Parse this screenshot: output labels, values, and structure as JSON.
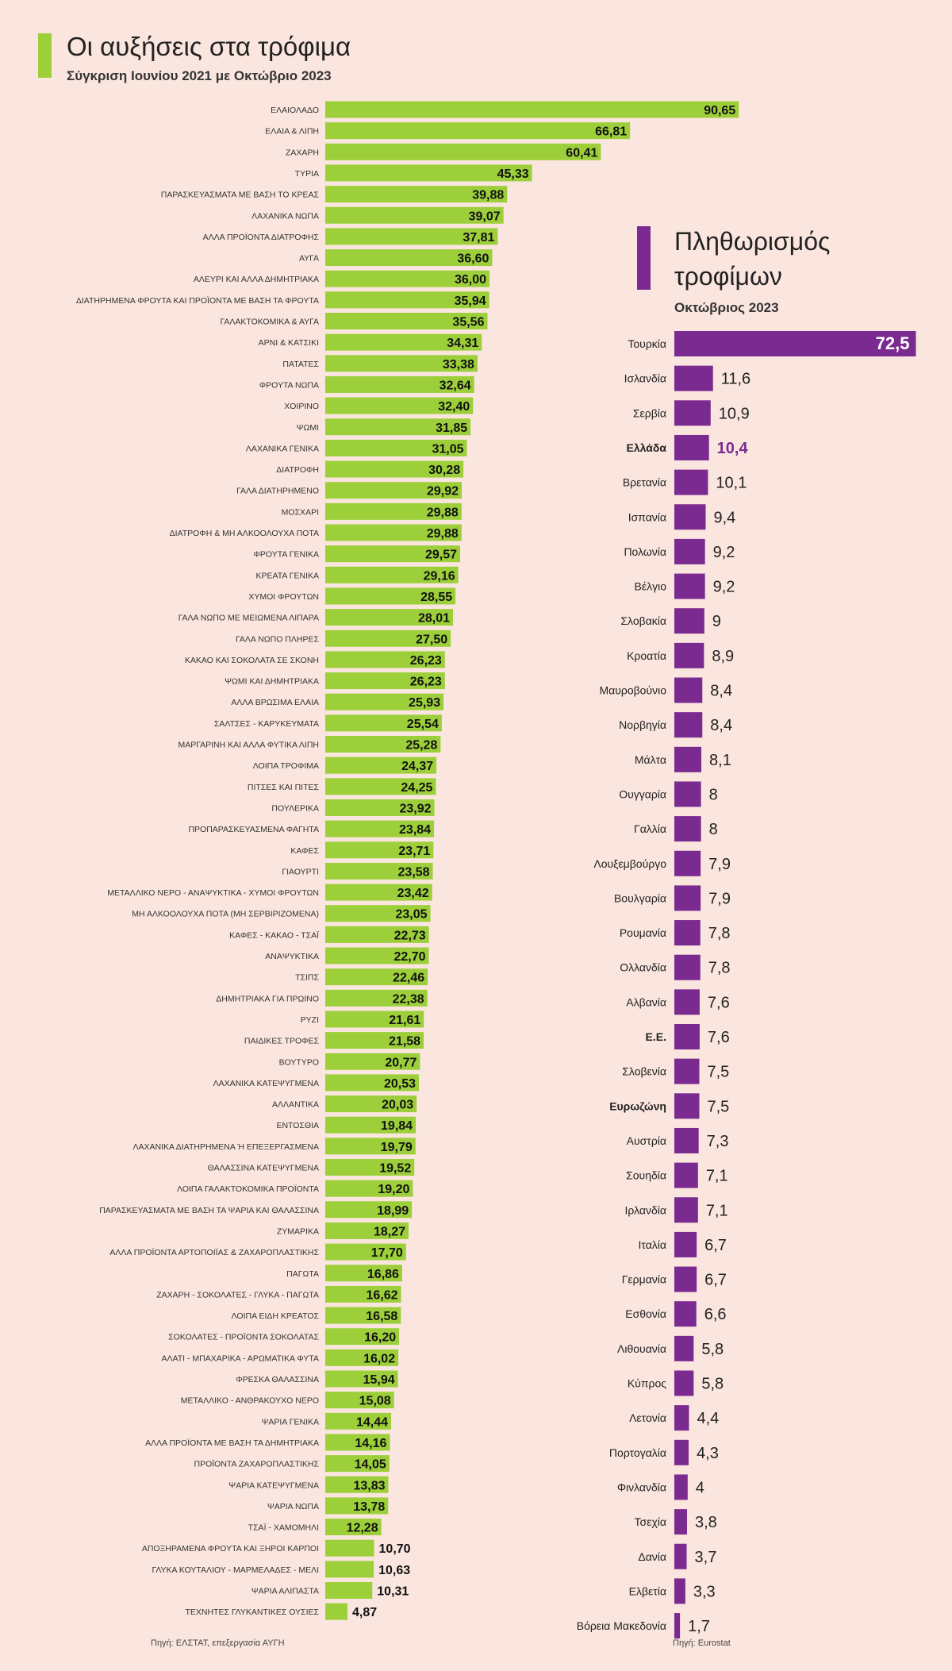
{
  "left": {
    "title": "Οι αυξήσεις στα τρόφιμα",
    "subtitle": "Σύγκριση Ιουνίου 2021 με Οκτώβριο 2023",
    "source": "Πηγή: ΕΛΣΤΑΤ, επεξεργασία ΑΥΓΗ"
  },
  "right": {
    "title": "Πληθωρισμός τροφίμων",
    "subtitle": "Οκτώβριος 2023",
    "source": "Πηγή: Eurostat"
  },
  "colors": {
    "left_bar": "#9ccf3a",
    "right_bar": "#7b2a8f",
    "background": "#fbe6df",
    "highlight_text": "#7b2a8f"
  },
  "chart_data": [
    {
      "type": "bar",
      "orientation": "horizontal",
      "title": "Οι αυξήσεις στα τρόφιμα",
      "subtitle": "Σύγκριση Ιουνίου 2021 με Οκτώβριο 2023",
      "categories": [
        "ΕΛΑΙΟΛΑΔΟ",
        "ΕΛΑΙΑ & ΛΙΠΗ",
        "ΖΑΧΑΡΗ",
        "ΤΥΡΙΑ",
        "ΠΑΡΑΣΚΕΥΑΣΜΑΤΑ ΜΕ ΒΑΣΗ ΤΟ ΚΡΕΑΣ",
        "ΛΑΧΑΝΙΚΑ ΝΩΠΑ",
        "ΑΛΛΑ ΠΡΟΪΟΝΤΑ ΔΙΑΤΡΟΦΗΣ",
        "ΑΥΓΑ",
        "ΑΛΕΥΡΙ ΚΑΙ ΑΛΛΑ ΔΗΜΗΤΡΙΑΚΑ",
        "ΔΙΑΤΗΡΗΜΕΝΑ ΦΡΟΥΤΑ ΚΑΙ ΠΡΟΪΟΝΤΑ ΜΕ ΒΑΣΗ ΤΑ ΦΡΟΥΤΑ",
        "ΓΑΛΑΚΤΟΚΟΜΙΚΑ & ΑΥΓΑ",
        "ΑΡΝΙ & ΚΑΤΣΙΚΙ",
        "ΠΑΤΑΤΕΣ",
        "ΦΡΟΥΤΑ ΝΩΠΑ",
        "ΧΟΙΡΙΝΟ",
        "ΨΩΜΙ",
        "ΛΑΧΑΝΙΚΑ ΓΕΝΙΚΑ",
        "ΔΙΑΤΡΟΦΗ",
        "ΓΑΛΑ ΔΙΑΤΗΡΗΜΕΝΟ",
        "ΜΟΣΧΑΡΙ",
        "ΔΙΑΤΡΟΦΗ & ΜΗ ΑΛΚΟΟΛΟΥΧΑ ΠΟΤΑ",
        "ΦΡΟΥΤΑ ΓΕΝΙΚΑ",
        "ΚΡΕΑΤΑ ΓΕΝΙΚΑ",
        "ΧΥΜΟΙ ΦΡΟΥΤΩΝ",
        "ΓΑΛΑ ΝΩΠΟ ΜΕ ΜΕΙΩΜΕΝΑ ΛΙΠΑΡΑ",
        "ΓΑΛΑ ΝΩΠΟ ΠΛΗΡΕΣ",
        "ΚΑΚΑΟ ΚΑΙ ΣΟΚΟΛΑΤΑ ΣΕ ΣΚΟΝΗ",
        "ΨΩΜΙ ΚΑΙ ΔΗΜΗΤΡΙΑΚΑ",
        "ΑΛΛΑ ΒΡΩΣΙΜΑ ΕΛΑΙΑ",
        "ΣΑΛΤΣΕΣ - ΚΑΡΥΚΕΥΜΑΤΑ",
        "ΜΑΡΓΑΡΙΝΗ ΚΑΙ ΑΛΛΑ ΦΥΤΙΚΑ ΛΙΠΗ",
        "ΛΟΙΠΑ ΤΡΟΦΙΜΑ",
        "ΠΙΤΣΕΣ ΚΑΙ ΠΙΤΕΣ",
        "ΠΟΥΛΕΡΙΚΑ",
        "ΠΡΟΠΑΡΑΣΚΕΥΑΣΜΕΝΑ ΦΑΓΗΤΑ",
        "ΚΑΦΕΣ",
        "ΓΙΑΟΥΡΤΙ",
        "ΜΕΤΑΛΛΙΚΟ ΝΕΡΟ - ΑΝΑΨΥΚΤΙΚΑ - ΧΥΜΟΙ ΦΡΟΥΤΩΝ",
        "ΜΗ ΑΛΚΟΟΛΟΥΧΑ ΠΟΤΑ (ΜΗ ΣΕΡΒΙΡΙΖΟΜΕΝΑ)",
        "ΚΑΦΕΣ - ΚΑΚΑΟ - ΤΣΑΪ",
        "ΑΝΑΨΥΚΤΙΚΑ",
        "ΤΣΙΠΣ",
        "ΔΗΜΗΤΡΙΑΚΑ ΓΙΑ ΠΡΩΙΝΟ",
        "ΡΥΖΙ",
        "ΠΑΙΔΙΚΕΣ ΤΡΟΦΕΣ",
        "ΒΟΥΤΥΡΟ",
        "ΛΑΧΑΝΙΚΑ ΚΑΤΕΨΥΓΜΕΝΑ",
        "ΑΛΛΑΝΤΙΚΑ",
        "ΕΝΤΟΣΘΙΑ",
        "ΛΑΧΑΝΙΚΑ ΔΙΑΤΗΡΗΜΕΝΑ Ή ΕΠΕΞΕΡΓΑΣΜΕΝΑ",
        "ΘΑΛΑΣΣΙΝΑ ΚΑΤΕΨΥΓΜΕΝΑ",
        "ΛΟΙΠΑ ΓΑΛΑΚΤΟΚΟΜΙΚΑ ΠΡΟΪΟΝΤΑ",
        "ΠΑΡΑΣΚΕΥΑΣΜΑΤΑ ΜΕ ΒΑΣΗ ΤΑ ΨΑΡΙΑ ΚΑΙ ΘΑΛΑΣΣΙΝΑ",
        "ΖΥΜΑΡΙΚΑ",
        "ΑΛΛΑ ΠΡΟΪΟΝΤΑ ΑΡΤΟΠΟΙΪΑΣ & ΖΑΧΑΡΟΠΛΑΣΤΙΚΗΣ",
        "ΠΑΓΩΤΑ",
        "ΖΑΧΑΡΗ - ΣΟΚΟΛΑΤΕΣ - ΓΛΥΚΑ - ΠΑΓΩΤΑ",
        "ΛΟΙΠΑ ΕΙΔΗ ΚΡΕΑΤΟΣ",
        "ΣΟΚΟΛΑΤΕΣ - ΠΡΟΪΟΝΤΑ ΣΟΚΟΛΑΤΑΣ",
        "ΑΛΑΤΙ - ΜΠΑΧΑΡΙΚΑ - ΑΡΩΜΑΤΙΚΑ ΦΥΤΑ",
        "ΦΡΕΣΚΑ ΘΑΛΑΣΣΙΝΑ",
        "ΜΕΤΑΛΛΙΚΟ - ΑΝΘΡΑΚΟΥΧΟ ΝΕΡΟ",
        "ΨΑΡΙΑ ΓΕΝΙΚΑ",
        "ΑΛΛΑ ΠΡΟΪΟΝΤΑ ΜΕ ΒΑΣΗ ΤΑ ΔΗΜΗΤΡΙΑΚΑ",
        "ΠΡΟΪΟΝΤΑ ΖΑΧΑΡΟΠΛΑΣΤΙΚΗΣ",
        "ΨΑΡΙΑ ΚΑΤΕΨΥΓΜΕΝΑ",
        "ΨΑΡΙΑ ΝΩΠΑ",
        "ΤΣΑΪ - ΧΑΜΟΜΗΛΙ",
        "ΑΠΟΞΗΡΑΜΕΝΑ ΦΡΟΥΤΑ ΚΑΙ ΞΗΡΟΙ ΚΑΡΠΟΙ",
        "ΓΛΥΚΑ ΚΟΥΤΑΛΙΟΥ - ΜΑΡΜΕΛΑΔΕΣ - ΜΕΛΙ",
        "ΨΑΡΙΑ ΑΛΙΠΑΣΤΑ",
        "ΤΕΧΝΗΤΕΣ ΓΛΥΚΑΝΤΙΚΕΣ ΟΥΣΙΕΣ"
      ],
      "value_labels": [
        "90,65",
        "66,81",
        "60,41",
        "45,33",
        "39,88",
        "39,07",
        "37,81",
        "36,60",
        "36,00",
        "35,94",
        "35,56",
        "34,31",
        "33,38",
        "32,64",
        "32,40",
        "31,85",
        "31,05",
        "30,28",
        "29,92",
        "29,88",
        "29,88",
        "29,57",
        "29,16",
        "28,55",
        "28,01",
        "27,50",
        "26,23",
        "26,23",
        "25,93",
        "25,54",
        "25,28",
        "24,37",
        "24,25",
        "23,92",
        "23,84",
        "23,71",
        "23,58",
        "23,42",
        "23,05",
        "22,73",
        "22,70",
        "22,46",
        "22,38",
        "21,61",
        "21,58",
        "20,77",
        "20,53",
        "20,03",
        "19,84",
        "19,79",
        "19,52",
        "19,20",
        "18,99",
        "18,27",
        "17,70",
        "16,86",
        "16,62",
        "16,58",
        "16,20",
        "16,02",
        "15,94",
        "15,08",
        "14,44",
        "14,16",
        "14,05",
        "13,83",
        "13,78",
        "12,28",
        "10,70",
        "10,63",
        "10,31",
        "4,87"
      ],
      "values": [
        90.65,
        66.81,
        60.41,
        45.33,
        39.88,
        39.07,
        37.81,
        36.6,
        36.0,
        35.94,
        35.56,
        34.31,
        33.38,
        32.64,
        32.4,
        31.85,
        31.05,
        30.28,
        29.92,
        29.88,
        29.88,
        29.57,
        29.16,
        28.55,
        28.01,
        27.5,
        26.23,
        26.23,
        25.93,
        25.54,
        25.28,
        24.37,
        24.25,
        23.92,
        23.84,
        23.71,
        23.58,
        23.42,
        23.05,
        22.73,
        22.7,
        22.46,
        22.38,
        21.61,
        21.58,
        20.77,
        20.53,
        20.03,
        19.84,
        19.79,
        19.52,
        19.2,
        18.99,
        18.27,
        17.7,
        16.86,
        16.62,
        16.58,
        16.2,
        16.02,
        15.94,
        15.08,
        14.44,
        14.16,
        14.05,
        13.83,
        13.78,
        12.28,
        10.7,
        10.63,
        10.31,
        4.87
      ]
    },
    {
      "type": "bar",
      "orientation": "horizontal",
      "title": "Πληθωρισμός τροφίμων",
      "subtitle": "Οκτώβριος 2023",
      "categories": [
        "Τουρκία",
        "Ισλανδία",
        "Σερβία",
        "Ελλάδα",
        "Βρετανία",
        "Ισπανία",
        "Πολωνία",
        "Βέλγιο",
        "Σλοβακία",
        "Κροατία",
        "Μαυροβούνιο",
        "Νορβηγία",
        "Μάλτα",
        "Ουγγαρία",
        "Γαλλία",
        "Λουξεμβούργο",
        "Βουλγαρία",
        "Ρουμανία",
        "Ολλανδία",
        "Αλβανία",
        "Ε.Ε.",
        "Σλοβενία",
        "Ευρωζώνη",
        "Αυστρία",
        "Σουηδία",
        "Ιρλανδία",
        "Ιταλία",
        "Γερμανία",
        "Εσθονία",
        "Λιθουανία",
        "Κύπρος",
        "Λετονία",
        "Πορτογαλία",
        "Φινλανδία",
        "Τσεχία",
        "Δανία",
        "Ελβετία",
        "Βόρεια Μακεδονία"
      ],
      "value_labels": [
        "72,5",
        "11,6",
        "10,9",
        "10,4",
        "10,1",
        "9,4",
        "9,2",
        "9,2",
        "9",
        "8,9",
        "8,4",
        "8,4",
        "8,1",
        "8",
        "8",
        "7,9",
        "7,9",
        "7,8",
        "7,8",
        "7,6",
        "7,6",
        "7,5",
        "7,5",
        "7,3",
        "7,1",
        "7,1",
        "6,7",
        "6,7",
        "6,6",
        "5,8",
        "5,8",
        "4,4",
        "4,3",
        "4",
        "3,8",
        "3,7",
        "3,3",
        "1,7"
      ],
      "values": [
        72.5,
        11.6,
        10.9,
        10.4,
        10.1,
        9.4,
        9.2,
        9.2,
        9,
        8.9,
        8.4,
        8.4,
        8.1,
        8,
        8,
        7.9,
        7.9,
        7.8,
        7.8,
        7.6,
        7.6,
        7.5,
        7.5,
        7.3,
        7.1,
        7.1,
        6.7,
        6.7,
        6.6,
        5.8,
        5.8,
        4.4,
        4.3,
        4,
        3.8,
        3.7,
        3.3,
        1.7
      ],
      "bold_categories": [
        "Ελλάδα",
        "Ε.Ε.",
        "Ευρωζώνη"
      ],
      "highlight_category": "Ελλάδα"
    }
  ]
}
